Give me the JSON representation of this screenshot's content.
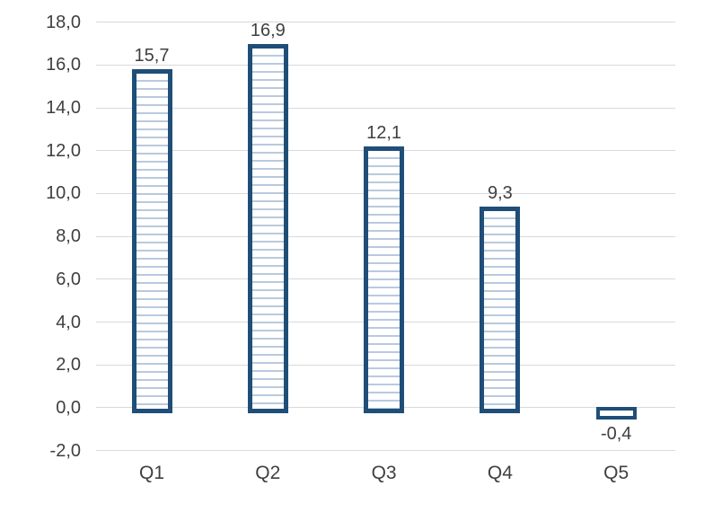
{
  "chart_data": {
    "type": "bar",
    "title": "",
    "categories": [
      "Q1",
      "Q2",
      "Q3",
      "Q4",
      "Q5"
    ],
    "values": [
      15.7,
      16.9,
      12.1,
      9.3,
      -0.4
    ],
    "value_labels": [
      "15,7",
      "16,9",
      "12,1",
      "9,3",
      "-0,4"
    ],
    "xlabel": "",
    "ylabel": "",
    "ylim": [
      -2,
      18
    ],
    "y_tick_step": 2,
    "y_tick_labels": [
      "18,0",
      "16,0",
      "14,0",
      "12,0",
      "10,0",
      "8,0",
      "6,0",
      "4,0",
      "2,0",
      "0,0",
      "-2,0"
    ],
    "decimal_separator": ",",
    "grid": true,
    "legend_position": "none",
    "colors": {
      "bar_border": "#1f4e79",
      "bar_fill_background": "#ffffff",
      "hatch_line": "#b9cadd",
      "gridline": "#d9d9d9",
      "text": "#3f3f3f",
      "background": "#ffffff"
    },
    "bar_fill_style": "horizontal-hatch"
  }
}
